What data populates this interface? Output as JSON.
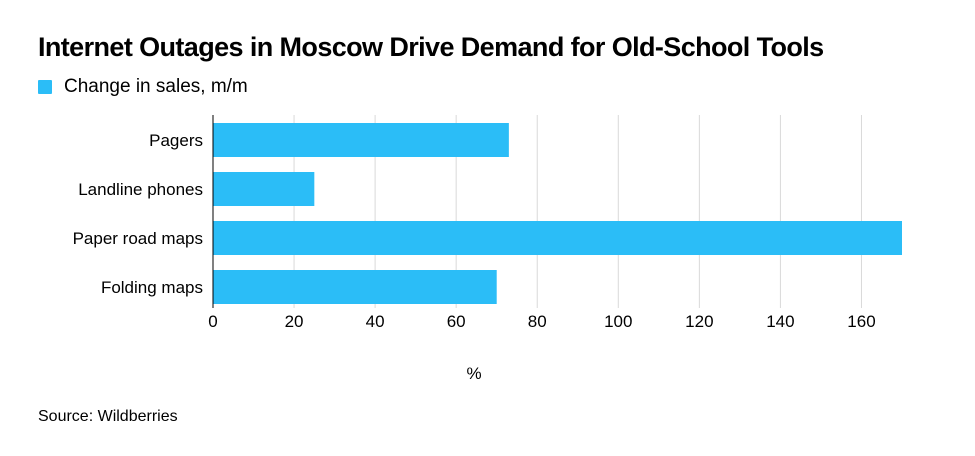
{
  "chart_data": {
    "type": "bar",
    "orientation": "horizontal",
    "title": "Internet Outages in Moscow Drive Demand for Old-School Tools",
    "legend": [
      "Change in sales, m/m"
    ],
    "categories": [
      "Pagers",
      "Landline phones",
      "Paper road maps",
      "Folding maps"
    ],
    "series": [
      {
        "name": "Change in sales, m/m",
        "values": [
          73,
          25,
          170,
          70
        ]
      }
    ],
    "xlabel": "%",
    "ylabel": "",
    "xlim": [
      0,
      170
    ],
    "xticks": [
      0,
      20,
      40,
      60,
      80,
      100,
      120,
      140,
      160
    ],
    "grid": true,
    "source": "Source: Wildberries",
    "colors": {
      "bar": "#2bbdf7",
      "grid": "#d9d9d9",
      "text": "#000000"
    }
  }
}
